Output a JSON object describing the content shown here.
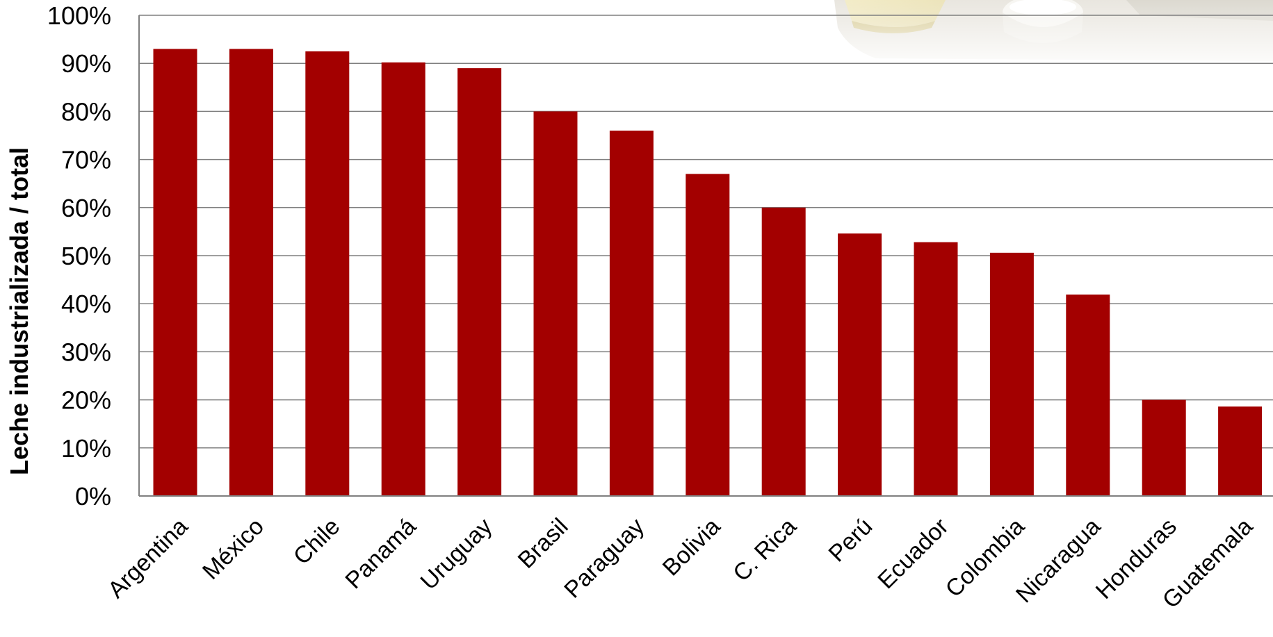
{
  "chart_data": {
    "type": "bar",
    "ylabel": "Leche industrializada / total",
    "categories": [
      "Argentina",
      "México",
      "Chile",
      "Panamá",
      "Uruguay",
      "Brasil",
      "Paraguay",
      "Bolivia",
      "C. Rica",
      "Perú",
      "Ecuador",
      "Colombia",
      "Nicaragua",
      "Honduras",
      "Guatemala"
    ],
    "values": [
      93,
      93,
      92.5,
      90.2,
      89,
      80,
      76,
      67,
      60,
      54.6,
      52.8,
      50.6,
      41.9,
      20,
      18.6
    ],
    "y_ticks": [
      "0%",
      "10%",
      "20%",
      "30%",
      "40%",
      "50%",
      "60%",
      "70%",
      "80%",
      "90%",
      "100%"
    ],
    "ylim": [
      0,
      100
    ],
    "grid": true,
    "bar_color": "#a30000",
    "grid_color": "#7f7f7f"
  }
}
